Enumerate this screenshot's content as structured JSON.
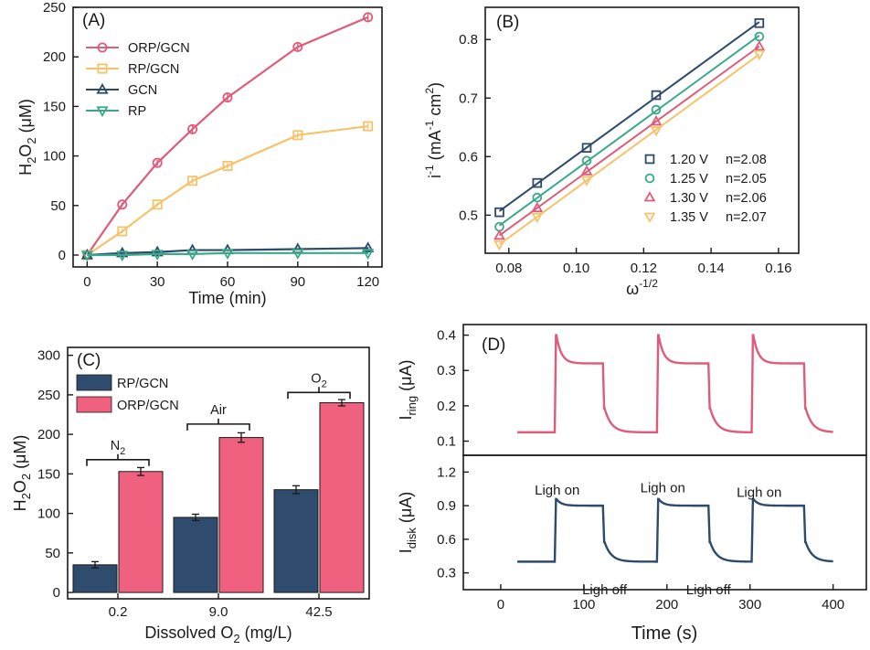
{
  "chart_data": [
    {
      "panel": "(A)",
      "type": "line",
      "xlabel": "Time (min)",
      "ylabel": "H2O2 (μM)",
      "xlim": [
        -6,
        126
      ],
      "ylim": [
        -12,
        250
      ],
      "xticks": [
        0,
        30,
        60,
        90,
        120
      ],
      "yticks": [
        0,
        50,
        100,
        150,
        200,
        250
      ],
      "legend_position": "top-left",
      "x": [
        0,
        15,
        30,
        45,
        60,
        90,
        120
      ],
      "series": [
        {
          "name": "ORP/GCN",
          "marker": "circle",
          "color": "#e05b7a",
          "values": [
            0,
            51,
            93,
            127,
            159,
            210,
            240
          ],
          "errors": [
            0,
            2,
            3,
            4,
            4,
            4,
            5
          ]
        },
        {
          "name": "RP/GCN",
          "marker": "square",
          "color": "#f5c36b",
          "values": [
            0,
            24,
            51,
            75,
            90,
            121,
            130
          ],
          "errors": [
            0,
            2,
            2,
            3,
            3,
            3,
            3
          ]
        },
        {
          "name": "GCN",
          "marker": "triangle-up",
          "color": "#2d4a6b",
          "values": [
            0,
            2,
            3,
            5,
            5,
            6,
            7
          ],
          "errors": [
            0,
            1,
            1,
            1,
            1,
            1,
            1
          ]
        },
        {
          "name": "RP",
          "marker": "triangle-down",
          "color": "#3aa98a",
          "values": [
            0,
            0,
            1,
            1,
            2,
            2,
            2
          ],
          "errors": [
            0,
            1,
            1,
            1,
            1,
            1,
            1
          ]
        }
      ]
    },
    {
      "panel": "(B)",
      "type": "scatter",
      "xlabel": "ω",
      "xlabel_sup": "-1/2",
      "ylabel": "i",
      "ylabel_sup": "-1",
      "ylabel_unit": "(mA",
      "ylabel_unit_sup": "-1",
      "ylabel_unit_tail": " cm",
      "ylabel_unit_tail_sup": "2",
      "ylabel_close": ")",
      "xlim": [
        0.073,
        0.166
      ],
      "ylim": [
        0.435,
        0.855
      ],
      "xticks": [
        0.08,
        0.1,
        0.12,
        0.14,
        0.16
      ],
      "xtick_labels": [
        "0.08",
        "0.10",
        "0.12",
        "0.14",
        "0.16"
      ],
      "yticks": [
        0.5,
        0.6,
        0.7,
        0.8
      ],
      "ytick_labels": [
        "0.5",
        "0.6",
        "0.7",
        "0.8"
      ],
      "legend_position": "bottom-right",
      "x": [
        0.0772,
        0.0884,
        0.1031,
        0.1237,
        0.1543
      ],
      "series": [
        {
          "name": "1.20 V",
          "n_label": "n=2.08",
          "marker": "square",
          "color": "#2d4a6b",
          "values": [
            0.505,
            0.555,
            0.615,
            0.705,
            0.828
          ]
        },
        {
          "name": "1.25 V",
          "n_label": "n=2.05",
          "marker": "circle",
          "color": "#3aa98a",
          "values": [
            0.48,
            0.53,
            0.593,
            0.68,
            0.805
          ]
        },
        {
          "name": "1.30 V",
          "n_label": "n=2.06",
          "marker": "triangle-up",
          "color": "#e05b7a",
          "values": [
            0.465,
            0.512,
            0.575,
            0.66,
            0.788
          ]
        },
        {
          "name": "1.35 V",
          "n_label": "n=2.07",
          "marker": "triangle-down",
          "color": "#f5c36b",
          "values": [
            0.45,
            0.497,
            0.56,
            0.645,
            0.775
          ]
        }
      ]
    },
    {
      "panel": "(C)",
      "type": "bar",
      "xlabel": "Dissolved O",
      "xlabel_sub": "2",
      "xlabel_tail": " (mg/L)",
      "ylabel": "H2O2 (μM)",
      "ylim": [
        -8,
        310
      ],
      "yticks": [
        0,
        50,
        100,
        150,
        200,
        250,
        300
      ],
      "legend_position": "top-left",
      "categories": [
        "0.2",
        "9.0",
        "42.5"
      ],
      "series": [
        {
          "name": "RP/GCN",
          "color": "#2f4b6e",
          "values": [
            35,
            95,
            130
          ],
          "errors": [
            4,
            4,
            5
          ]
        },
        {
          "name": "ORP/GCN",
          "color": "#f0607f",
          "values": [
            153,
            196,
            240
          ],
          "errors": [
            5,
            6,
            4
          ]
        }
      ],
      "annotations": [
        {
          "label": "N",
          "sub": "2",
          "category": "0.2",
          "y": 168
        },
        {
          "label": "Air",
          "sub": "",
          "category": "9.0",
          "y": 213
        },
        {
          "label": "O",
          "sub": "2",
          "category": "42.5",
          "y": 253
        }
      ]
    },
    {
      "panel": "(D)",
      "type": "line",
      "xlabel": "Time (s)",
      "xlim": [
        -45,
        440
      ],
      "xticks": [
        0,
        100,
        200,
        300,
        400
      ],
      "subplots": [
        {
          "name": "I_ring",
          "ylabel": "I",
          "ylabel_sub": "ring",
          "ylabel_tail": " (μA)",
          "color": "#e05b7a",
          "ylim": [
            0.06,
            0.43
          ],
          "yticks": [
            0.1,
            0.2,
            0.3,
            0.4
          ],
          "baseline_off": 0.125,
          "peak": 0.4,
          "plateau_on": 0.32,
          "cycles": [
            [
              65,
              123
            ],
            [
              188,
              250
            ],
            [
              302,
              365
            ]
          ],
          "time_range": [
            20,
            400
          ]
        },
        {
          "name": "I_disk",
          "ylabel": "I",
          "ylabel_sub": "disk",
          "ylabel_tail": " (μA)",
          "color": "#2d4a6b",
          "ylim": [
            0.15,
            1.35
          ],
          "yticks": [
            0.3,
            0.6,
            0.9,
            1.2
          ],
          "baseline_off": 0.4,
          "peak": 0.96,
          "plateau_on": 0.9,
          "cycles": [
            [
              65,
              123
            ],
            [
              188,
              250
            ],
            [
              302,
              365
            ]
          ],
          "time_range": [
            20,
            400
          ],
          "annotations": [
            {
              "label": "Ligh on",
              "t": 68,
              "v": 1.04
            },
            {
              "label": "Ligh on",
              "t": 195,
              "v": 1.06
            },
            {
              "label": "Ligh on",
              "t": 311,
              "v": 1.02
            },
            {
              "label": "Ligh off",
              "t": 125,
              "v": 0.15
            },
            {
              "label": "Ligh off",
              "t": 250,
              "v": 0.15
            }
          ]
        }
      ]
    }
  ]
}
